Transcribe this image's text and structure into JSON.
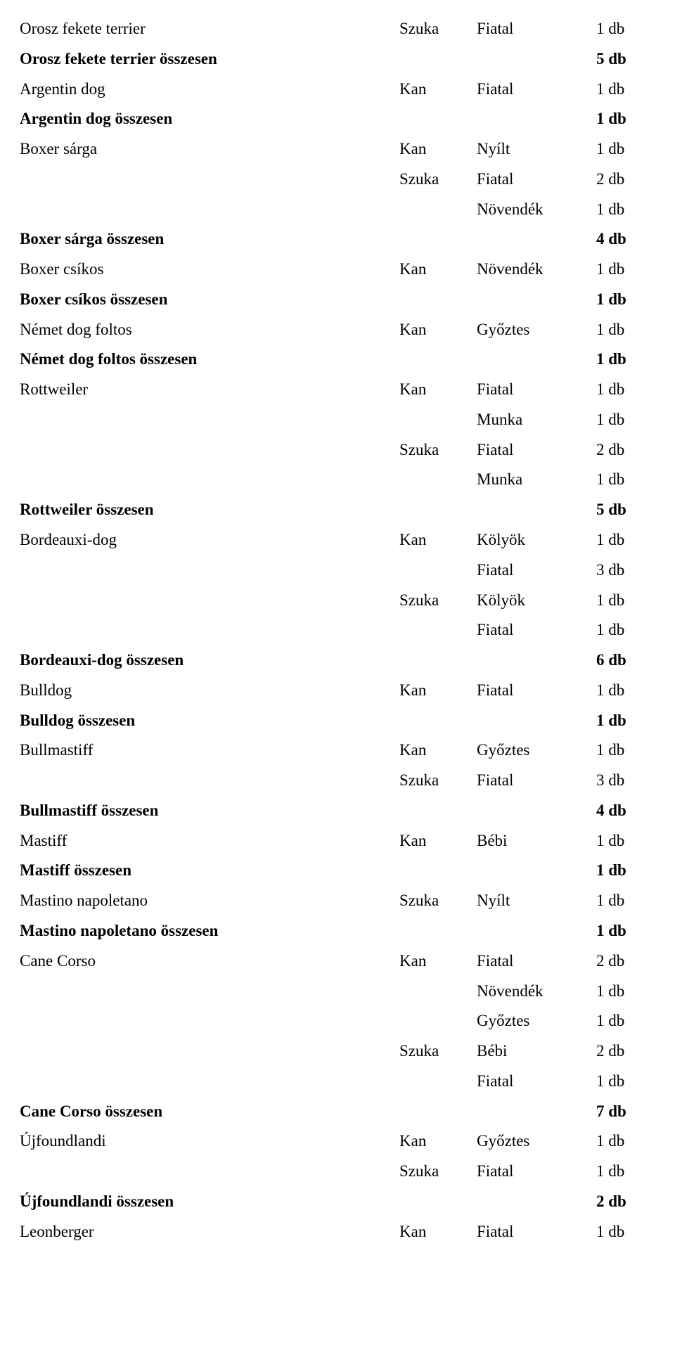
{
  "rows": [
    {
      "name": "Orosz fekete terrier",
      "sex": "Szuka",
      "class": "Fiatal",
      "count": "1 db",
      "bold": false
    },
    {
      "name": "Orosz fekete terrier összesen",
      "sex": "",
      "class": "",
      "count": "5 db",
      "bold": true
    },
    {
      "name": "Argentin dog",
      "sex": "Kan",
      "class": "Fiatal",
      "count": "1 db",
      "bold": false
    },
    {
      "name": "Argentin dog összesen",
      "sex": "",
      "class": "",
      "count": "1 db",
      "bold": true
    },
    {
      "name": "Boxer sárga",
      "sex": "Kan",
      "class": "Nyílt",
      "count": "1 db",
      "bold": false
    },
    {
      "name": "",
      "sex": "Szuka",
      "class": "Fiatal",
      "count": "2 db",
      "bold": false
    },
    {
      "name": "",
      "sex": "",
      "class": "Növendék",
      "count": "1 db",
      "bold": false
    },
    {
      "name": "Boxer sárga összesen",
      "sex": "",
      "class": "",
      "count": "4 db",
      "bold": true
    },
    {
      "name": "Boxer csíkos",
      "sex": "Kan",
      "class": "Növendék",
      "count": "1 db",
      "bold": false
    },
    {
      "name": "Boxer csíkos összesen",
      "sex": "",
      "class": "",
      "count": "1 db",
      "bold": true
    },
    {
      "name": "Német dog foltos",
      "sex": "Kan",
      "class": "Győztes",
      "count": "1 db",
      "bold": false
    },
    {
      "name": "Német dog foltos összesen",
      "sex": "",
      "class": "",
      "count": "1 db",
      "bold": true
    },
    {
      "name": "Rottweiler",
      "sex": "Kan",
      "class": "Fiatal",
      "count": "1 db",
      "bold": false
    },
    {
      "name": "",
      "sex": "",
      "class": "Munka",
      "count": "1 db",
      "bold": false
    },
    {
      "name": "",
      "sex": "Szuka",
      "class": "Fiatal",
      "count": "2 db",
      "bold": false
    },
    {
      "name": "",
      "sex": "",
      "class": "Munka",
      "count": "1 db",
      "bold": false
    },
    {
      "name": "Rottweiler összesen",
      "sex": "",
      "class": "",
      "count": "5 db",
      "bold": true
    },
    {
      "name": "Bordeauxi-dog",
      "sex": "Kan",
      "class": "Kölyök",
      "count": "1 db",
      "bold": false
    },
    {
      "name": "",
      "sex": "",
      "class": "Fiatal",
      "count": "3 db",
      "bold": false
    },
    {
      "name": "",
      "sex": "Szuka",
      "class": "Kölyök",
      "count": "1 db",
      "bold": false
    },
    {
      "name": "",
      "sex": "",
      "class": "Fiatal",
      "count": "1 db",
      "bold": false
    },
    {
      "name": "Bordeauxi-dog összesen",
      "sex": "",
      "class": "",
      "count": "6 db",
      "bold": true
    },
    {
      "name": "Bulldog",
      "sex": "Kan",
      "class": "Fiatal",
      "count": "1 db",
      "bold": false
    },
    {
      "name": "Bulldog összesen",
      "sex": "",
      "class": "",
      "count": "1 db",
      "bold": true
    },
    {
      "name": "Bullmastiff",
      "sex": "Kan",
      "class": "Győztes",
      "count": "1 db",
      "bold": false
    },
    {
      "name": "",
      "sex": "Szuka",
      "class": "Fiatal",
      "count": "3 db",
      "bold": false
    },
    {
      "name": "Bullmastiff összesen",
      "sex": "",
      "class": "",
      "count": "4 db",
      "bold": true
    },
    {
      "name": "Mastiff",
      "sex": "Kan",
      "class": "Bébi",
      "count": "1 db",
      "bold": false
    },
    {
      "name": "Mastiff összesen",
      "sex": "",
      "class": "",
      "count": "1 db",
      "bold": true
    },
    {
      "name": "Mastino napoletano",
      "sex": "Szuka",
      "class": "Nyílt",
      "count": "1 db",
      "bold": false
    },
    {
      "name": "Mastino napoletano összesen",
      "sex": "",
      "class": "",
      "count": "1 db",
      "bold": true
    },
    {
      "name": "Cane Corso",
      "sex": "Kan",
      "class": "Fiatal",
      "count": "2 db",
      "bold": false
    },
    {
      "name": "",
      "sex": "",
      "class": "Növendék",
      "count": "1 db",
      "bold": false
    },
    {
      "name": "",
      "sex": "",
      "class": "Győztes",
      "count": "1 db",
      "bold": false
    },
    {
      "name": "",
      "sex": "Szuka",
      "class": "Bébi",
      "count": "2 db",
      "bold": false
    },
    {
      "name": "",
      "sex": "",
      "class": "Fiatal",
      "count": "1 db",
      "bold": false
    },
    {
      "name": "Cane Corso összesen",
      "sex": "",
      "class": "",
      "count": "7 db",
      "bold": true
    },
    {
      "name": "Újfoundlandi",
      "sex": "Kan",
      "class": "Győztes",
      "count": "1 db",
      "bold": false
    },
    {
      "name": "",
      "sex": "Szuka",
      "class": "Fiatal",
      "count": "1 db",
      "bold": false
    },
    {
      "name": "Újfoundlandi összesen",
      "sex": "",
      "class": "",
      "count": "2 db",
      "bold": true
    },
    {
      "name": "Leonberger",
      "sex": "Kan",
      "class": "Fiatal",
      "count": "1 db",
      "bold": false
    }
  ]
}
